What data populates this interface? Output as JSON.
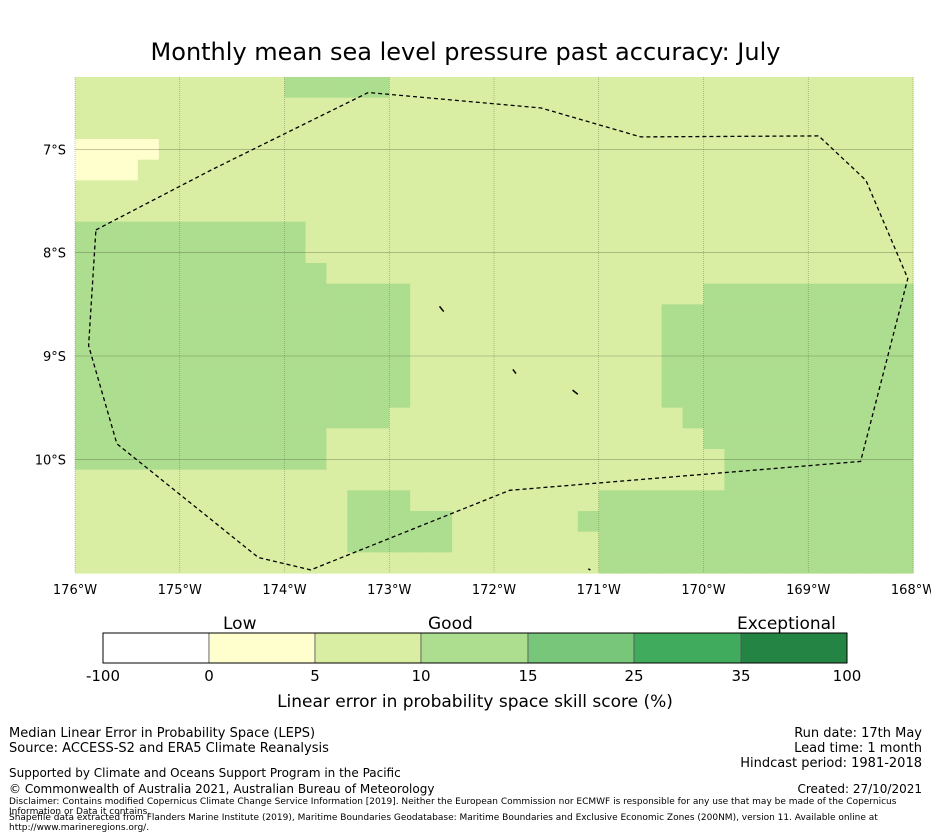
{
  "title": "Monthly mean sea level pressure past accuracy: July",
  "map": {
    "lon_range": [
      -176,
      -168
    ],
    "lat_range": [
      -11.1,
      -6.3
    ],
    "lon_ticks": [
      "176°W",
      "175°W",
      "174°W",
      "173°W",
      "172°W",
      "171°W",
      "170°W",
      "169°W",
      "168°W"
    ],
    "lat_ticks": [
      "7°S",
      "8°S",
      "9°S",
      "10°S"
    ],
    "grid_cell_deg": 0.2,
    "field_grid_note": "24 rows x 40 cols; row 0 at north; values are colour-class indices (1=0-5, 2=5-10, 3=10-15)",
    "field_grid": [
      "2222222222333332222222222222222222222222",
      "2222222222222222222222222222222222222222",
      "2222222222222222222222222222222222222222",
      "1111222222222222222222222222222222222222",
      "1112222222222222222222222222222222222222",
      "2222222222222222222222222222222222222222",
      "2222222222222222222222222222222222222222",
      "3333333333322222222222222222222222222222",
      "3333333333322222222222222222222222222222",
      "3333333333332222222222222222222222222222",
      "3333333333333333222222222222223333333333",
      "3333333333333333222222222222333333333333",
      "3333333333333333222222222222333333333333",
      "3333333333333333222222222222333333333333",
      "3333333333333333222222222222333333333333",
      "3333333333333333222222222222333333333333",
      "3333333333333332222222222222233333333333",
      "3333333333332222222222222222223333333333",
      "3333333333332222222222222222222333333333",
      "2222222222222222222222222222222333333333",
      "2222222222222333222222222333333333333333",
      "2222222222222333332222223333333333333333",
      "2222222222222333332222222333333333333333",
      "2222222222222222222222222333333333333333"
    ],
    "eez_boundary": [
      [
        -175.8,
        -7.78
      ],
      [
        -174.7,
        -7.2
      ],
      [
        -173.2,
        -6.45
      ],
      [
        -171.55,
        -6.6
      ],
      [
        -170.6,
        -6.88
      ],
      [
        -168.9,
        -6.87
      ],
      [
        -168.45,
        -7.3
      ],
      [
        -168.05,
        -8.25
      ],
      [
        -168.5,
        -10.02
      ],
      [
        -171.85,
        -10.3
      ],
      [
        -173.75,
        -11.07
      ],
      [
        -174.25,
        -10.95
      ],
      [
        -175.6,
        -9.85
      ],
      [
        -175.87,
        -8.9
      ],
      [
        -175.8,
        -7.78
      ]
    ],
    "islands": [
      [
        [
          -172.52,
          -8.52
        ],
        [
          -172.48,
          -8.57
        ]
      ],
      [
        [
          -171.82,
          -9.13
        ],
        [
          -171.79,
          -9.17
        ]
      ],
      [
        [
          -171.25,
          -9.33
        ],
        [
          -171.2,
          -9.37
        ]
      ],
      [
        [
          -171.1,
          -11.06
        ],
        [
          -171.08,
          -11.07
        ]
      ]
    ],
    "colors": {
      "ocean_field": "#d9eea3",
      "boundary": "#000000",
      "gridline": "#4b5a37"
    }
  },
  "colorbar": {
    "category_labels": [
      "Low",
      "Good",
      "Exceptional"
    ],
    "ticks": [
      "-100",
      "0",
      "5",
      "10",
      "15",
      "25",
      "35",
      "100"
    ],
    "colors": [
      "#ffffff",
      "#feffcc",
      "#d9eea3",
      "#addd8e",
      "#78c679",
      "#41ab5d",
      "#238443"
    ],
    "label": "Linear error in probability space skill score (%)"
  },
  "footer": {
    "left_line1": "Median Linear Error in Probability Space (LEPS)",
    "left_line2": "Source: ACCESS-S2 and ERA5 Climate Reanalysis",
    "supported": "Supported by Climate and Oceans Support Program in the Pacific",
    "copyright": "© Commonwealth of Australia 2021, Australian Bureau of Meteorology",
    "disclaimer": "Disclaimer: Contains modified Copernicus Climate Change Service Information [2019]. Neither the European Commission nor ECMWF is responsible for any use that may be made of the Copernicus Information or Data it contains.",
    "shapefile": "Shapefile data extracted from Flanders Marine Institute (2019), Maritime Boundaries Geodatabase: Maritime Boundaries and Exclusive Economic Zones (200NM), version 11. Available online at http://www.marineregions.org/.",
    "run_date": "Run date: 17th May",
    "lead_time": "Lead time: 1 month",
    "hindcast": "Hindcast period: 1981-2018",
    "created": "Created: 27/10/2021"
  }
}
